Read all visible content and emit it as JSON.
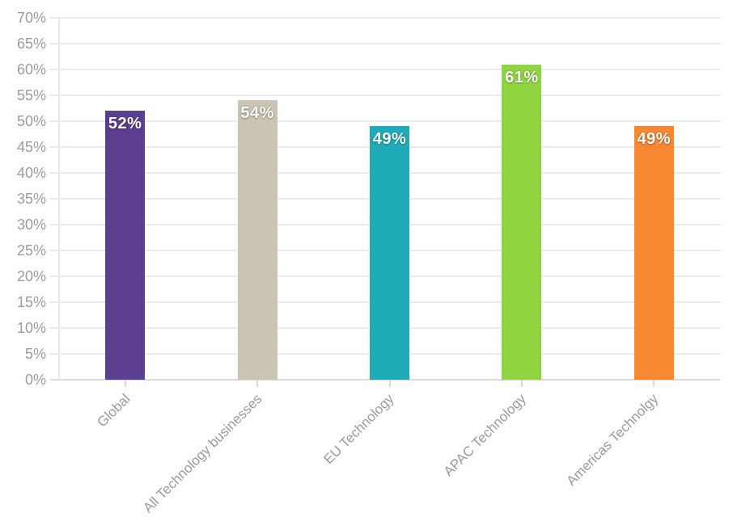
{
  "chart_data": {
    "type": "bar",
    "title": "",
    "xlabel": "",
    "ylabel": "",
    "categories": [
      "Global",
      "All Technology businesses",
      "EU Technology",
      "APAC Technology",
      "Americas Technolgy"
    ],
    "values": [
      52,
      54,
      49,
      61,
      49
    ],
    "value_labels": [
      "52%",
      "54%",
      "49%",
      "61%",
      "49%"
    ],
    "bar_colors": [
      "#5D3F91",
      "#CBC4B4",
      "#1FACB8",
      "#8FD53F",
      "#F88732"
    ],
    "ylim": [
      0,
      70
    ],
    "ytick_step": 5,
    "ytick_labels": [
      "0%",
      "5%",
      "10%",
      "15%",
      "20%",
      "25%",
      "30%",
      "35%",
      "40%",
      "45%",
      "50%",
      "55%",
      "60%",
      "65%",
      "70%"
    ],
    "grid": "horizontal",
    "legend": "none",
    "colors": {
      "gridline": "#ebebeb",
      "baseline": "#dcdcdc",
      "axis_line": "#e7e7e7",
      "tick": "#d9d9d9",
      "ytick_text": "#9b9b9b",
      "xtick_text": "#9a9a9a",
      "value_text": "#ffffff",
      "background": "#ffffff"
    }
  }
}
